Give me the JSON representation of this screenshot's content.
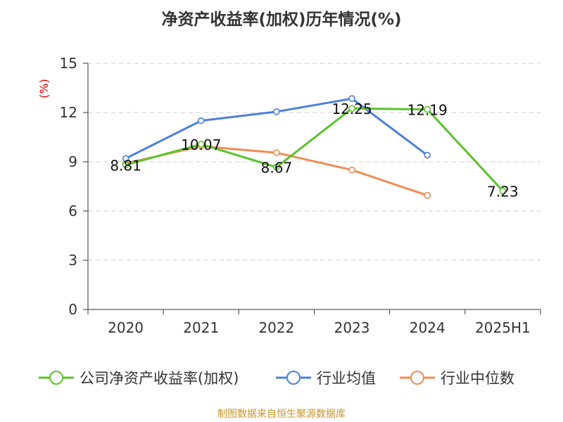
{
  "title": "净资产收益率(加权)历年情况(%)",
  "source": "制图数据来自恒生聚源数据库",
  "colors": {
    "company": "#5cc22d",
    "industry_avg": "#4d7fdb",
    "industry_median": "#f08c55",
    "unit_label": "#d60000",
    "source_text": "#c8932b",
    "grid": "#cccccc",
    "axis": "#333333"
  },
  "chart_data": {
    "type": "line",
    "title": "净资产收益率(加权)历年情况(%)",
    "ylabel": "(%)",
    "xlabel": "",
    "categories": [
      "2020",
      "2021",
      "2022",
      "2023",
      "2024",
      "2025H1"
    ],
    "ylim": [
      0,
      15
    ],
    "yticks": [
      0,
      3,
      6,
      9,
      12,
      15
    ],
    "grid": "horizontal dashed",
    "legend_position": "bottom",
    "series": [
      {
        "name": "公司净资产收益率(加权)",
        "color": "#5cc22d",
        "values": [
          8.81,
          10.07,
          8.67,
          12.25,
          12.19,
          7.23
        ],
        "labels": [
          "8.81",
          "10.07",
          "8.67",
          "12.25",
          "12.19",
          "7.23"
        ],
        "show_labels": true
      },
      {
        "name": "行业均值",
        "color": "#4d7fdb",
        "values": [
          9.2,
          11.5,
          12.05,
          12.85,
          9.4,
          null
        ],
        "show_labels": false
      },
      {
        "name": "行业中位数",
        "color": "#f08c55",
        "values": [
          8.9,
          9.95,
          9.55,
          8.5,
          6.95,
          null
        ],
        "show_labels": false
      }
    ]
  }
}
